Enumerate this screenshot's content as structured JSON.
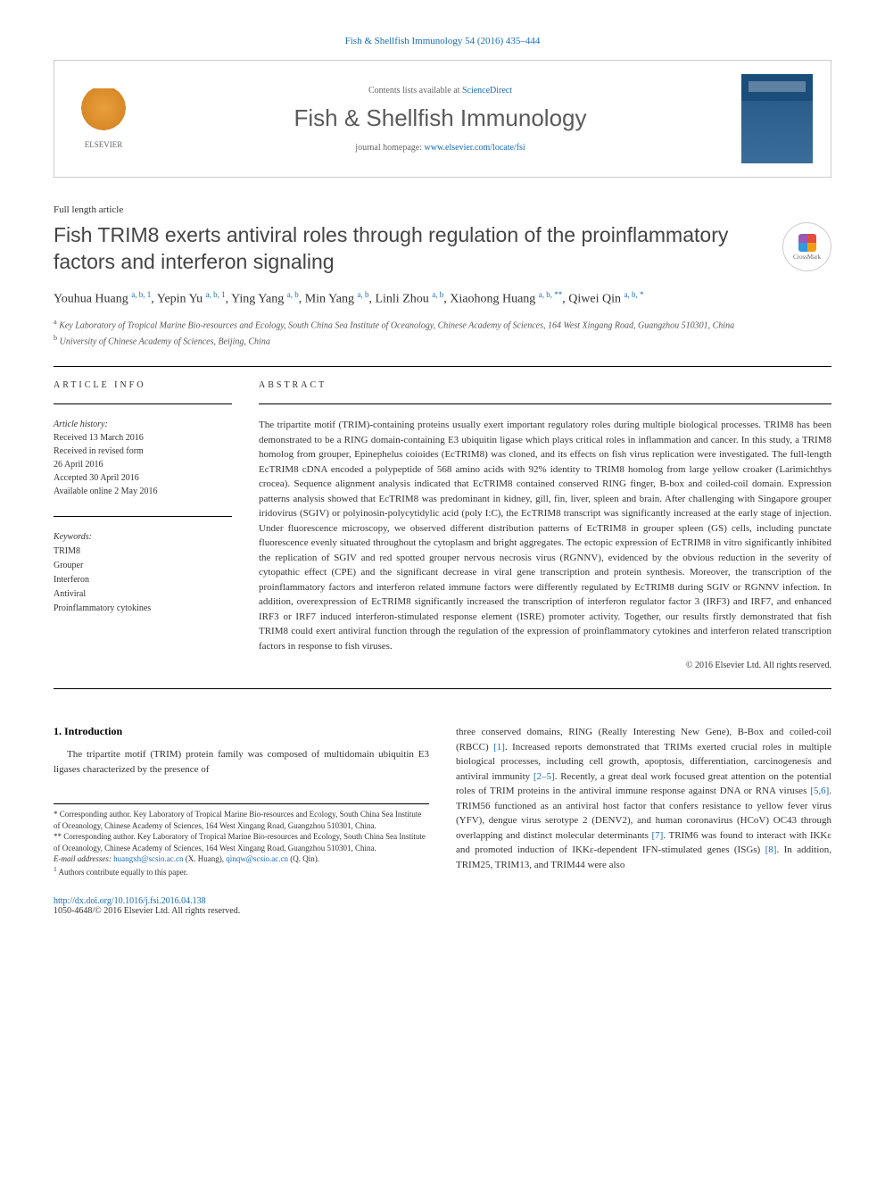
{
  "citation": "Fish & Shellfish Immunology 54 (2016) 435–444",
  "contents": {
    "prefix": "Contents lists available at ",
    "link": "ScienceDirect"
  },
  "journal": "Fish & Shellfish Immunology",
  "homepage": {
    "prefix": "journal homepage: ",
    "url": "www.elsevier.com/locate/fsi"
  },
  "elsevier_label": "ELSEVIER",
  "article_type": "Full length article",
  "title": "Fish TRIM8 exerts antiviral roles through regulation of the proinflammatory factors and interferon signaling",
  "crossmark_label": "CrossMark",
  "authors_html": "Youhua Huang <sup>a, b, 1</sup>, Yepin Yu <sup>a, b, 1</sup>, Ying Yang <sup>a, b</sup>, Min Yang <sup>a, b</sup>, Linli Zhou <sup>a, b</sup>, Xiaohong Huang <sup>a, b, **</sup>, Qiwei Qin <sup>a, b, *</sup>",
  "affiliations": {
    "a": "Key Laboratory of Tropical Marine Bio-resources and Ecology, South China Sea Institute of Oceanology, Chinese Academy of Sciences, 164 West Xingang Road, Guangzhou 510301, China",
    "b": "University of Chinese Academy of Sciences, Beijing, China"
  },
  "section_labels": {
    "info": "ARTICLE INFO",
    "abstract": "ABSTRACT"
  },
  "history": {
    "label": "Article history:",
    "received": "Received 13 March 2016",
    "revised_line1": "Received in revised form",
    "revised_line2": "26 April 2016",
    "accepted": "Accepted 30 April 2016",
    "online": "Available online 2 May 2016"
  },
  "keywords": {
    "label": "Keywords:",
    "items": [
      "TRIM8",
      "Grouper",
      "Interferon",
      "Antiviral",
      "Proinflammatory cytokines"
    ]
  },
  "abstract": "The tripartite motif (TRIM)-containing proteins usually exert important regulatory roles during multiple biological processes. TRIM8 has been demonstrated to be a RING domain-containing E3 ubiquitin ligase which plays critical roles in inflammation and cancer. In this study, a TRIM8 homolog from grouper, Epinephelus coioides (EcTRIM8) was cloned, and its effects on fish virus replication were investigated. The full-length EcTRIM8 cDNA encoded a polypeptide of 568 amino acids with 92% identity to TRIM8 homolog from large yellow croaker (Larimichthys crocea). Sequence alignment analysis indicated that EcTRIM8 contained conserved RING finger, B-box and coiled-coil domain. Expression patterns analysis showed that EcTRIM8 was predominant in kidney, gill, fin, liver, spleen and brain. After challenging with Singapore grouper iridovirus (SGIV) or polyinosin-polycytidylic acid (poly I:C), the EcTRIM8 transcript was significantly increased at the early stage of injection. Under fluorescence microscopy, we observed different distribution patterns of EcTRIM8 in grouper spleen (GS) cells, including punctate fluorescence evenly situated throughout the cytoplasm and bright aggregates. The ectopic expression of EcTRIM8 in vitro significantly inhibited the replication of SGIV and red spotted grouper nervous necrosis virus (RGNNV), evidenced by the obvious reduction in the severity of cytopathic effect (CPE) and the significant decrease in viral gene transcription and protein synthesis. Moreover, the transcription of the proinflammatory factors and interferon related immune factors were differently regulated by EcTRIM8 during SGIV or RGNNV infection. In addition, overexpression of EcTRIM8 significantly increased the transcription of interferon regulator factor 3 (IRF3) and IRF7, and enhanced IRF3 or IRF7 induced interferon-stimulated response element (ISRE) promoter activity. Together, our results firstly demonstrated that fish TRIM8 could exert antiviral function through the regulation of the expression of proinflammatory cytokines and interferon related transcription factors in response to fish viruses.",
  "copyright": "© 2016 Elsevier Ltd. All rights reserved.",
  "intro": {
    "heading": "1. Introduction",
    "para1": "The tripartite motif (TRIM) protein family was composed of multidomain ubiquitin E3 ligases characterized by the presence of",
    "para2_pre": "three conserved domains, RING (Really Interesting New Gene), B-Box and coiled-coil (RBCC) ",
    "ref1": "[1]",
    "para2_mid": ". Increased reports demonstrated that TRIMs exerted crucial roles in multiple biological processes, including cell growth, apoptosis, differentiation, carcinogenesis and antiviral immunity ",
    "ref2": "[2–5]",
    "para2_mid2": ". Recently, a great deal work focused great attention on the potential roles of TRIM proteins in the antiviral immune response against DNA or RNA viruses ",
    "ref3": "[5,6]",
    "para2_mid3": ". TRIM56 functioned as an antiviral host factor that confers resistance to yellow fever virus (YFV), dengue virus serotype 2 (DENV2), and human coronavirus (HCoV) OC43 through overlapping and distinct molecular determinants ",
    "ref4": "[7]",
    "para2_mid4": ". TRIM6 was found to interact with IKKε and promoted induction of IKKε-dependent IFN-stimulated genes (ISGs) ",
    "ref5": "[8]",
    "para2_end": ". In addition, TRIM25, TRIM13, and TRIM44 were also"
  },
  "footnotes": {
    "corr1": "* Corresponding author. Key Laboratory of Tropical Marine Bio-resources and Ecology, South China Sea Institute of Oceanology, Chinese Academy of Sciences, 164 West Xingang Road, Guangzhou 510301, China.",
    "corr2": "** Corresponding author. Key Laboratory of Tropical Marine Bio-resources and Ecology, South China Sea Institute of Oceanology, Chinese Academy of Sciences, 164 West Xingang Road, Guangzhou 510301, China.",
    "email_label": "E-mail addresses: ",
    "email1": "huangxh@scsio.ac.cn",
    "email1_name": " (X. Huang), ",
    "email2": "qinqw@scsio.ac.cn",
    "email2_name": " (Q. Qin).",
    "note1": "Authors contribute equally to this paper."
  },
  "footer": {
    "doi": "http://dx.doi.org/10.1016/j.fsi.2016.04.138",
    "issn": "1050-4648/© 2016 Elsevier Ltd. All rights reserved."
  },
  "colors": {
    "link": "#1a6bb5",
    "text": "#333333",
    "journal_title": "#5a5a5a",
    "border": "#cccccc"
  },
  "fonts": {
    "body": "Georgia, 'Times New Roman', serif",
    "journal": "Arial, sans-serif",
    "title_size": 23,
    "journal_size": 26,
    "body_size": 11,
    "small_size": 10,
    "footnote_size": 9
  }
}
